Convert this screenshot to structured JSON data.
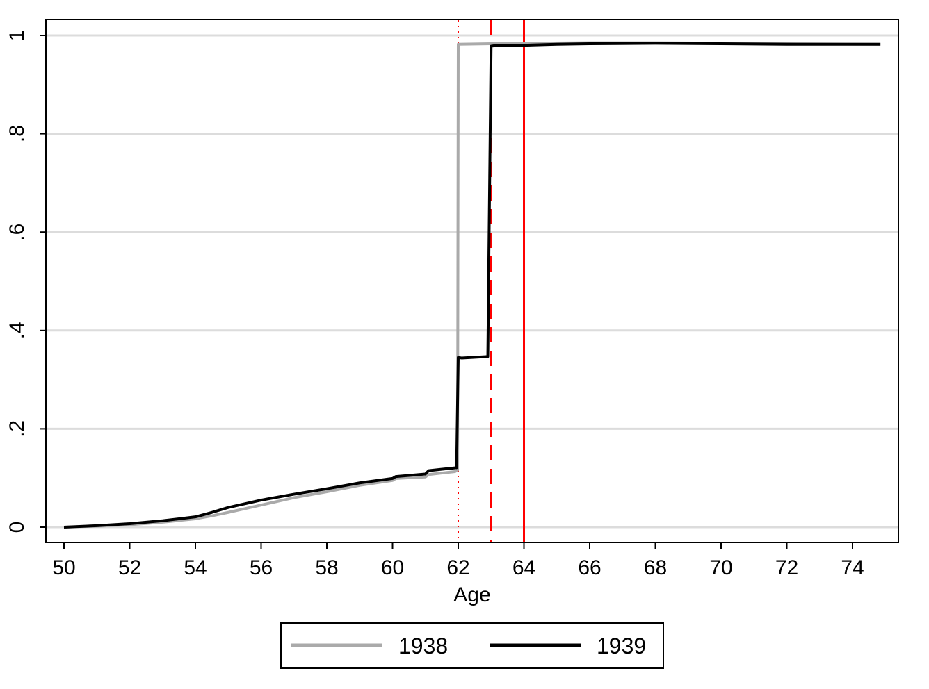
{
  "chart_data": {
    "type": "line",
    "title": "",
    "xlabel": "Age",
    "ylabel": "",
    "xlim": [
      49.5,
      75.4
    ],
    "ylim": [
      -0.03,
      1.033
    ],
    "xticks": [
      50,
      52,
      54,
      56,
      58,
      60,
      62,
      64,
      66,
      68,
      70,
      72,
      74
    ],
    "xtick_labels": [
      "50",
      "52",
      "54",
      "56",
      "58",
      "60",
      "62",
      "64",
      "66",
      "68",
      "70",
      "72",
      "74"
    ],
    "yticks": [
      0,
      0.2,
      0.4,
      0.6,
      0.8,
      1
    ],
    "ytick_labels": [
      "0",
      ".2",
      ".4",
      ".6",
      ".8",
      "1"
    ],
    "grid": true,
    "legend_position": "bottom",
    "series": [
      {
        "name": "1938",
        "color": "#aaaaaa",
        "x": [
          50,
          51,
          52,
          53,
          54,
          54.5,
          55,
          56,
          57,
          58,
          59,
          60,
          60.1,
          61,
          61.1,
          61.9,
          61.98,
          62.0,
          63,
          64,
          66,
          68,
          70,
          72,
          74.85
        ],
        "y": [
          0,
          0.002,
          0.005,
          0.01,
          0.017,
          0.023,
          0.03,
          0.045,
          0.06,
          0.072,
          0.085,
          0.095,
          0.099,
          0.102,
          0.107,
          0.113,
          0.116,
          0.982,
          0.983,
          0.984,
          0.985,
          0.985,
          0.984,
          0.983,
          0.982
        ]
      },
      {
        "name": "1939",
        "color": "#000000",
        "x": [
          50,
          51,
          52,
          53,
          54,
          54.5,
          55,
          56,
          57,
          58,
          59,
          60,
          60.1,
          61,
          61.1,
          61.95,
          62.0,
          62.1,
          62.9,
          63.0,
          63.1,
          64,
          65,
          66,
          68,
          70,
          72,
          74.85
        ],
        "y": [
          0,
          0.003,
          0.007,
          0.013,
          0.021,
          0.03,
          0.04,
          0.055,
          0.067,
          0.078,
          0.09,
          0.099,
          0.103,
          0.108,
          0.115,
          0.121,
          0.345,
          0.344,
          0.347,
          0.978,
          0.979,
          0.98,
          0.982,
          0.983,
          0.984,
          0.983,
          0.982,
          0.982
        ]
      }
    ],
    "vlines": [
      {
        "x": 62,
        "style": "dotted",
        "color": "#ff0000"
      },
      {
        "x": 63,
        "style": "dashed",
        "color": "#ff0000"
      },
      {
        "x": 64,
        "style": "solid",
        "color": "#ff0000"
      }
    ]
  }
}
